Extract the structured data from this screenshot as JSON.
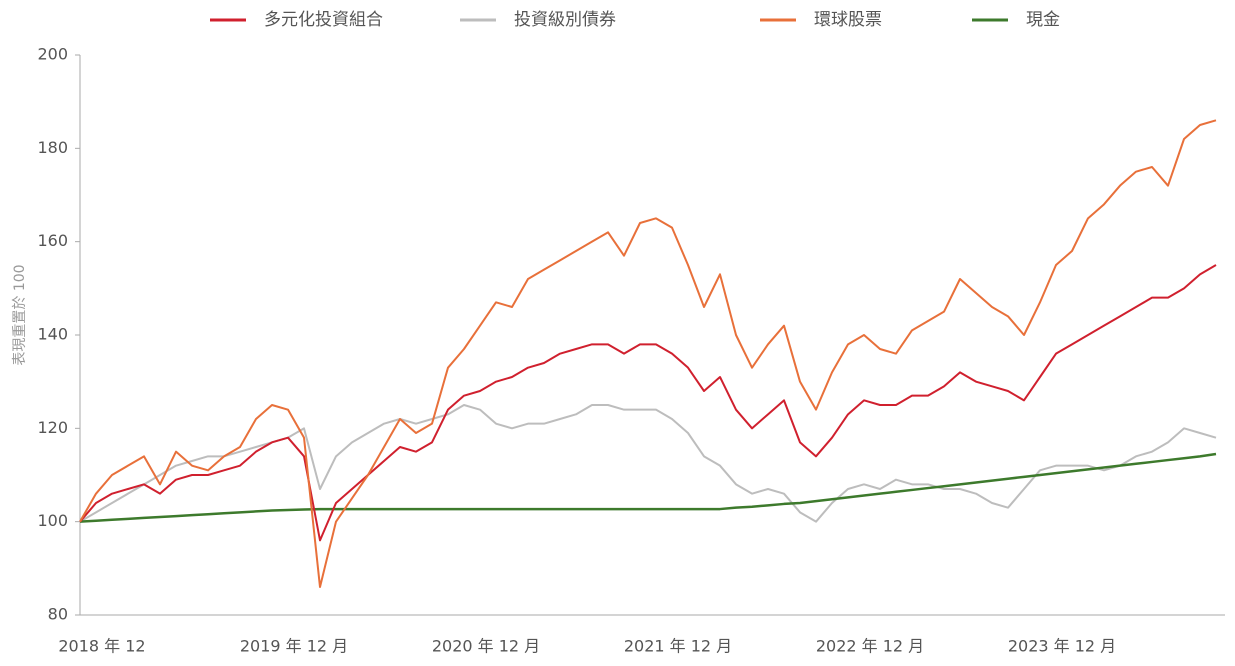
{
  "chart_data": {
    "type": "line",
    "ylabel": "表現重置於 100",
    "categories": [
      "2018 年 12",
      null,
      null,
      null,
      null,
      null,
      null,
      null,
      null,
      null,
      null,
      null,
      "2019 年 12 月",
      null,
      null,
      null,
      null,
      null,
      null,
      null,
      null,
      null,
      null,
      null,
      "2020 年 12 月",
      null,
      null,
      null,
      null,
      null,
      null,
      null,
      null,
      null,
      null,
      null,
      "2021 年 12 月",
      null,
      null,
      null,
      null,
      null,
      null,
      null,
      null,
      null,
      null,
      null,
      "2022 年 12 月",
      null,
      null,
      null,
      null,
      null,
      null,
      null,
      null,
      null,
      null,
      null,
      "2023 年 12 月",
      null,
      null,
      null,
      null,
      null,
      null,
      null,
      null,
      null,
      null,
      null
    ],
    "ylim": [
      80,
      200
    ],
    "yticks": [
      80,
      100,
      120,
      140,
      160,
      180,
      200
    ],
    "grid": false,
    "series": [
      {
        "name": "多元化投資組合",
        "color": "#d0202e",
        "values": [
          100,
          104,
          106,
          107,
          108,
          106,
          109,
          110,
          110,
          111,
          112,
          115,
          117,
          118,
          114,
          96,
          104,
          107,
          110,
          113,
          116,
          115,
          117,
          124,
          127,
          128,
          130,
          131,
          133,
          134,
          136,
          137,
          138,
          138,
          136,
          138,
          138,
          136,
          133,
          128,
          131,
          124,
          120,
          123,
          126,
          117,
          114,
          118,
          123,
          126,
          125,
          125,
          127,
          127,
          129,
          132,
          130,
          129,
          128,
          126,
          131,
          136,
          138,
          140,
          142,
          144,
          146,
          148,
          148,
          150,
          153,
          155
        ]
      },
      {
        "name": "投資級別債券",
        "color": "#bdbdbd",
        "values": [
          100,
          102,
          104,
          106,
          108,
          110,
          112,
          113,
          114,
          114,
          115,
          116,
          117,
          118,
          120,
          107,
          114,
          117,
          119,
          121,
          122,
          121,
          122,
          123,
          125,
          124,
          121,
          120,
          121,
          121,
          122,
          123,
          125,
          125,
          124,
          124,
          124,
          122,
          119,
          114,
          112,
          108,
          106,
          107,
          106,
          102,
          100,
          104,
          107,
          108,
          107,
          109,
          108,
          108,
          107,
          107,
          106,
          104,
          103,
          107,
          111,
          112,
          112,
          112,
          111,
          112,
          114,
          115,
          117,
          120,
          119,
          118
        ]
      },
      {
        "name": "環球股票",
        "color": "#e8703a",
        "values": [
          100,
          106,
          110,
          112,
          114,
          108,
          115,
          112,
          111,
          114,
          116,
          122,
          125,
          124,
          118,
          86,
          100,
          105,
          110,
          116,
          122,
          119,
          121,
          133,
          137,
          142,
          147,
          146,
          152,
          154,
          156,
          158,
          160,
          162,
          157,
          164,
          165,
          163,
          155,
          146,
          153,
          140,
          133,
          138,
          142,
          130,
          124,
          132,
          138,
          140,
          137,
          136,
          141,
          143,
          145,
          152,
          149,
          146,
          144,
          140,
          147,
          155,
          158,
          165,
          168,
          172,
          175,
          176,
          172,
          182,
          185,
          186
        ]
      },
      {
        "name": "現金",
        "color": "#3d7a2c",
        "values": [
          100,
          100.2,
          100.4,
          100.6,
          100.8,
          101,
          101.2,
          101.4,
          101.6,
          101.8,
          102,
          102.2,
          102.4,
          102.5,
          102.6,
          102.7,
          102.7,
          102.7,
          102.7,
          102.7,
          102.7,
          102.7,
          102.7,
          102.7,
          102.7,
          102.7,
          102.7,
          102.7,
          102.7,
          102.7,
          102.7,
          102.7,
          102.7,
          102.7,
          102.7,
          102.7,
          102.7,
          102.7,
          102.7,
          102.7,
          102.7,
          103,
          103.2,
          103.5,
          103.8,
          104,
          104.4,
          104.8,
          105.2,
          105.6,
          106,
          106.4,
          106.8,
          107.2,
          107.6,
          108,
          108.4,
          108.8,
          109.2,
          109.6,
          110,
          110.4,
          110.8,
          111.2,
          111.6,
          112,
          112.4,
          112.8,
          113.2,
          113.6,
          114,
          114.5
        ]
      }
    ]
  }
}
